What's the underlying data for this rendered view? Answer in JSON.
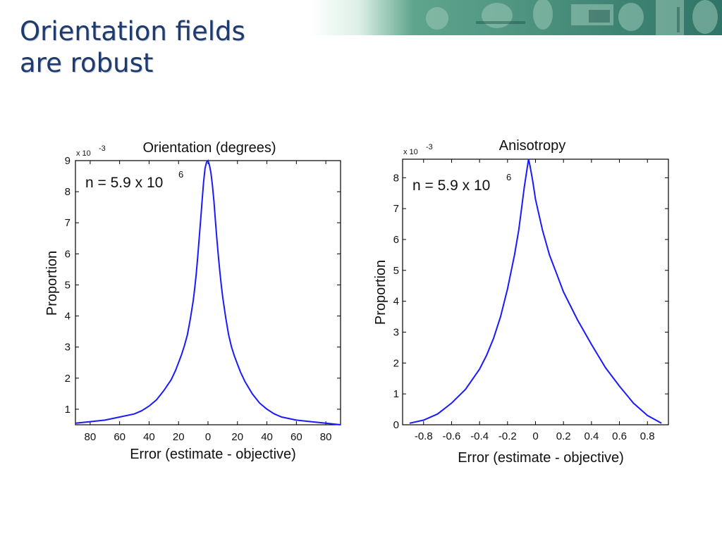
{
  "slide": {
    "title_line1": "Orientation fields",
    "title_line2": "are robust",
    "title_color": "#1f3b6e",
    "banner_colors": [
      "#ffffff",
      "#cfe8dc",
      "#3d8a72",
      "#2a6a5c"
    ]
  },
  "chart_data": [
    {
      "type": "line",
      "title": "Orientation (degrees)",
      "xlabel": "Error (estimate - objective)",
      "ylabel": "Proportion",
      "y_multiplier": "x 10",
      "y_multiplier_exp": "-3",
      "annotation": "n = 5.9 x 10",
      "annotation_exp": "6",
      "xlim": [
        -90,
        90
      ],
      "ylim": [
        0.5,
        9
      ],
      "xticks": [
        -80,
        -60,
        -40,
        -20,
        0,
        20,
        40,
        60,
        80
      ],
      "xtick_labels": [
        "80",
        "60",
        "40",
        "20",
        "0",
        "20",
        "40",
        "60",
        "80"
      ],
      "yticks": [
        1,
        2,
        3,
        4,
        5,
        6,
        7,
        8,
        9
      ],
      "ytick_labels": [
        "1",
        "2",
        "3",
        "4",
        "5",
        "6",
        "7",
        "8",
        "9"
      ],
      "grid": false,
      "series": [
        {
          "color": "#1a1aff",
          "x": [
            -90,
            -80,
            -70,
            -60,
            -50,
            -45,
            -40,
            -35,
            -30,
            -25,
            -22,
            -20,
            -18,
            -16,
            -14,
            -12,
            -10,
            -9,
            -8,
            -7,
            -6,
            -5,
            -4,
            -3,
            -2,
            -1,
            0,
            1,
            2,
            3,
            4,
            5,
            6,
            7,
            8,
            9,
            10,
            12,
            14,
            16,
            18,
            20,
            22,
            25,
            30,
            35,
            40,
            45,
            50,
            60,
            70,
            80,
            90
          ],
          "y": [
            0.55,
            0.6,
            0.65,
            0.75,
            0.85,
            0.95,
            1.1,
            1.3,
            1.6,
            1.95,
            2.25,
            2.5,
            2.75,
            3.05,
            3.4,
            3.9,
            4.5,
            4.9,
            5.35,
            5.9,
            6.5,
            7.1,
            7.7,
            8.3,
            8.75,
            8.95,
            9.0,
            8.85,
            8.6,
            8.2,
            7.7,
            7.1,
            6.5,
            5.95,
            5.45,
            5.0,
            4.6,
            3.95,
            3.4,
            3.0,
            2.7,
            2.45,
            2.2,
            1.9,
            1.5,
            1.2,
            1.0,
            0.85,
            0.75,
            0.65,
            0.6,
            0.55,
            0.5
          ]
        }
      ]
    },
    {
      "type": "line",
      "title": "Anisotropy",
      "xlabel": "Error (estimate - objective)",
      "ylabel": "Proportion",
      "y_multiplier": "x 10",
      "y_multiplier_exp": "-3",
      "annotation": "n = 5.9 x 10",
      "annotation_exp": "6",
      "xlim": [
        -0.95,
        0.95
      ],
      "ylim": [
        0,
        8.6
      ],
      "xticks": [
        -0.8,
        -0.6,
        -0.4,
        -0.2,
        0,
        0.2,
        0.4,
        0.6,
        0.8
      ],
      "xtick_labels": [
        "-0.8",
        "-0.6",
        "-0.4",
        "-0.2",
        "0",
        "0.2",
        "0.4",
        "0.6",
        "0.8"
      ],
      "yticks": [
        0,
        1,
        2,
        3,
        4,
        5,
        6,
        7,
        8
      ],
      "ytick_labels": [
        "0",
        "1",
        "2",
        "3",
        "4",
        "5",
        "6",
        "7",
        "8"
      ],
      "grid": false,
      "series": [
        {
          "color": "#1a1aff",
          "x": [
            -0.9,
            -0.8,
            -0.7,
            -0.6,
            -0.5,
            -0.4,
            -0.35,
            -0.3,
            -0.25,
            -0.2,
            -0.15,
            -0.12,
            -0.1,
            -0.08,
            -0.06,
            -0.05,
            -0.04,
            -0.02,
            0,
            0.05,
            0.1,
            0.15,
            0.2,
            0.3,
            0.4,
            0.5,
            0.6,
            0.7,
            0.8,
            0.9
          ],
          "y": [
            0.05,
            0.15,
            0.35,
            0.7,
            1.15,
            1.8,
            2.25,
            2.8,
            3.5,
            4.4,
            5.5,
            6.3,
            7.0,
            7.7,
            8.3,
            8.6,
            8.4,
            7.9,
            7.3,
            6.3,
            5.5,
            4.9,
            4.3,
            3.4,
            2.6,
            1.85,
            1.25,
            0.7,
            0.3,
            0.05
          ]
        }
      ]
    }
  ]
}
